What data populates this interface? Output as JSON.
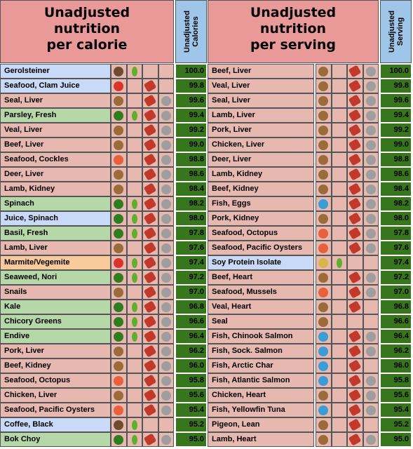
{
  "tables": [
    {
      "title": "Unadjusted\nnutrition\nper calorie",
      "score_header": "Unadjusted\nCalories",
      "rows": [
        {
          "name": "Gerolsteiner",
          "score": "100.0",
          "color": "#c9daf8"
        },
        {
          "name": "Seafood, Clam Juice",
          "score": "99.8",
          "color": "#c9daf8"
        },
        {
          "name": "Seal, Liver",
          "score": "99.6",
          "color": "#e6b8af"
        },
        {
          "name": "Parsley, Fresh",
          "score": "99.4",
          "color": "#b6d7a8"
        },
        {
          "name": "Veal, Liver",
          "score": "99.2",
          "color": "#e6b8af"
        },
        {
          "name": "Beef, Liver",
          "score": "99.0",
          "color": "#e6b8af"
        },
        {
          "name": "Seafood, Cockles",
          "score": "98.8",
          "color": "#e6b8af"
        },
        {
          "name": "Deer, Liver",
          "score": "98.6",
          "color": "#e6b8af"
        },
        {
          "name": "Lamb, Kidney",
          "score": "98.4",
          "color": "#e6b8af"
        },
        {
          "name": "Spinach",
          "score": "98.2",
          "color": "#b6d7a8"
        },
        {
          "name": "Juice, Spinach",
          "score": "98.0",
          "color": "#c9daf8"
        },
        {
          "name": "Basil, Fresh",
          "score": "97.8",
          "color": "#b6d7a8"
        },
        {
          "name": "Lamb, Liver",
          "score": "97.6",
          "color": "#e6b8af"
        },
        {
          "name": "Marmite/Vegemite",
          "score": "97.4",
          "color": "#f9cb9c"
        },
        {
          "name": "Seaweed, Nori",
          "score": "97.2",
          "color": "#b6d7a8"
        },
        {
          "name": "Snails",
          "score": "97.0",
          "color": "#e6b8af"
        },
        {
          "name": "Kale",
          "score": "96.8",
          "color": "#b6d7a8"
        },
        {
          "name": "Chicory Greens",
          "score": "96.6",
          "color": "#b6d7a8"
        },
        {
          "name": "Endive",
          "score": "96.4",
          "color": "#b6d7a8"
        },
        {
          "name": "Pork, Liver",
          "score": "96.2",
          "color": "#e6b8af"
        },
        {
          "name": "Beef, Kidney",
          "score": "96.0",
          "color": "#e6b8af"
        },
        {
          "name": "Seafood, Octopus",
          "score": "95.8",
          "color": "#e6b8af"
        },
        {
          "name": "Chicken, Liver",
          "score": "95.6",
          "color": "#e6b8af"
        },
        {
          "name": "Seafood, Pacific Oysters",
          "score": "95.4",
          "color": "#e6b8af"
        },
        {
          "name": "Coffee, Black",
          "score": "95.2",
          "color": "#c9daf8"
        },
        {
          "name": "Bok Choy",
          "score": "95.0",
          "color": "#b6d7a8"
        }
      ]
    },
    {
      "title": "Unadjusted\nnutrition\nper serving",
      "score_header": "Unadjusted\nServing",
      "rows": [
        {
          "name": "Beef, Liver",
          "score": "100.0",
          "color": "#e6b8af"
        },
        {
          "name": "Veal, Liver",
          "score": "99.8",
          "color": "#e6b8af"
        },
        {
          "name": "Seal, Liver",
          "score": "99.6",
          "color": "#e6b8af"
        },
        {
          "name": "Lamb, Liver",
          "score": "99.4",
          "color": "#e6b8af"
        },
        {
          "name": "Pork, Liver",
          "score": "99.2",
          "color": "#e6b8af"
        },
        {
          "name": "Chicken, Liver",
          "score": "99.0",
          "color": "#e6b8af"
        },
        {
          "name": "Deer, Liver",
          "score": "98.8",
          "color": "#e6b8af"
        },
        {
          "name": "Lamb, Kidney",
          "score": "98.6",
          "color": "#e6b8af"
        },
        {
          "name": "Beef, Kidney",
          "score": "98.4",
          "color": "#e6b8af"
        },
        {
          "name": "Fish, Eggs",
          "score": "98.2",
          "color": "#e6b8af"
        },
        {
          "name": "Pork, Kidney",
          "score": "98.0",
          "color": "#e6b8af"
        },
        {
          "name": "Seafood, Octopus",
          "score": "97.8",
          "color": "#e6b8af"
        },
        {
          "name": "Seafood, Pacific Oysters",
          "score": "97.6",
          "color": "#e6b8af"
        },
        {
          "name": "Soy Protein Isolate",
          "score": "97.4",
          "color": "#c9daf8"
        },
        {
          "name": "Beef, Heart",
          "score": "97.2",
          "color": "#e6b8af"
        },
        {
          "name": "Seafood, Mussels",
          "score": "97.0",
          "color": "#e6b8af"
        },
        {
          "name": "Veal, Heart",
          "score": "96.8",
          "color": "#e6b8af"
        },
        {
          "name": "Seal",
          "score": "96.6",
          "color": "#e6b8af"
        },
        {
          "name": "Fish, Chinook Salmon",
          "score": "96.4",
          "color": "#e6b8af"
        },
        {
          "name": "Fish, Sock. Salmon",
          "score": "96.2",
          "color": "#e6b8af"
        },
        {
          "name": "Fish, Arctic Char",
          "score": "96.0",
          "color": "#e6b8af"
        },
        {
          "name": "Fish, Atlantic Salmon",
          "score": "95.8",
          "color": "#e6b8af"
        },
        {
          "name": "Chicken, Heart",
          "score": "95.6",
          "color": "#e6b8af"
        },
        {
          "name": "Fish, Yellowfin Tuna",
          "score": "95.4",
          "color": "#e6b8af"
        },
        {
          "name": "Pigeon, Lean",
          "score": "95.2",
          "color": "#e6b8af"
        },
        {
          "name": "Lamb, Heart",
          "score": "95.0",
          "color": "#e6b8af"
        }
      ]
    }
  ]
}
